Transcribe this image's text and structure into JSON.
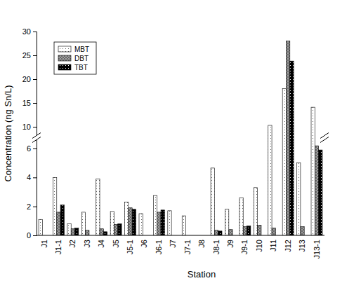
{
  "chart_data": {
    "type": "bar",
    "x_label": "Station",
    "y_label": "Concentration (ng Sn/L)",
    "categories": [
      "J1",
      "J1-1",
      "J2",
      "J3",
      "J4",
      "J5",
      "J5-1",
      "J6",
      "J6-1",
      "J7",
      "J7-1",
      "J8",
      "J8-1",
      "J9",
      "J9-1",
      "J10",
      "J11",
      "J12",
      "J13",
      "J13-1"
    ],
    "series": [
      {
        "name": "MBT",
        "color": "#ffffff",
        "values": [
          1.1,
          4.0,
          0.8,
          1.6,
          3.9,
          1.65,
          2.3,
          1.5,
          2.75,
          1.7,
          1.35,
          null,
          4.65,
          1.8,
          2.6,
          3.3,
          10.3,
          18.0,
          5.0,
          14.1
        ]
      },
      {
        "name": "DBT",
        "color": "#a0a0a0",
        "values": [
          null,
          1.6,
          0.45,
          0.35,
          0.45,
          0.75,
          1.9,
          null,
          1.6,
          null,
          null,
          null,
          0.35,
          0.4,
          0.6,
          0.7,
          0.5,
          28.0,
          0.6,
          6.5
        ]
      },
      {
        "name": "TBT",
        "color": "#000000",
        "values": [
          null,
          2.1,
          0.5,
          null,
          0.25,
          0.8,
          1.8,
          null,
          1.75,
          null,
          null,
          null,
          0.3,
          null,
          0.65,
          null,
          null,
          23.8,
          null,
          5.9
        ]
      }
    ],
    "ylim": [
      0,
      30
    ],
    "yticks": [
      0,
      2,
      4,
      6,
      10,
      15,
      20,
      25,
      30
    ],
    "legend": "top-left"
  }
}
